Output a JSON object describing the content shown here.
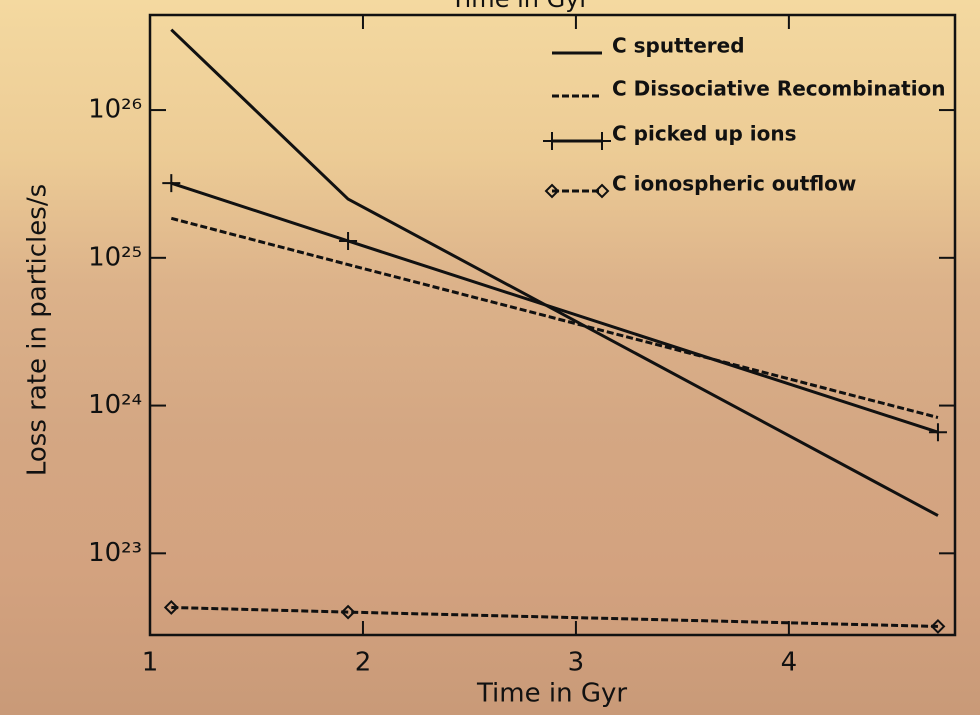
{
  "chart_data": {
    "type": "line",
    "title": "Time in Gyr",
    "xlabel": "Time in Gyr",
    "ylabel": "Loss rate in particles/s",
    "x": [
      1.1,
      1.93,
      4.7
    ],
    "series": [
      {
        "name": "C sputtered",
        "color": "#111111",
        "dash": "solid",
        "marker": "none",
        "values": [
          3.5e+26,
          2.5e+25,
          1.8e+23
        ]
      },
      {
        "name": "C Dissociative Recombination",
        "color": "#111111",
        "dash": "dashed",
        "marker": "none",
        "values": [
          1.85e+25,
          9e+24,
          8.3e+23
        ]
      },
      {
        "name": "C picked up ions",
        "color": "#111111",
        "dash": "solid",
        "marker": "plus",
        "values": [
          3.2e+25,
          1.3e+25,
          6.6e+23
        ]
      },
      {
        "name": "C ionospheric outflow",
        "color": "#111111",
        "dash": "dashed",
        "marker": "diamond",
        "values": [
          4.3e+22,
          4e+22,
          3.2e+22
        ]
      }
    ],
    "xlim": [
      1,
      4.78
    ],
    "xticks": [
      1,
      2,
      3,
      4
    ],
    "ylim": [
      2.8e+22,
      4.4e+26
    ],
    "yscale": "log",
    "yticks": [
      {
        "value": 1e+23,
        "label": "10²³"
      },
      {
        "value": 1e+24,
        "label": "10²⁴"
      },
      {
        "value": 1e+25,
        "label": "10²⁵"
      },
      {
        "value": 1e+26,
        "label": "10²⁶"
      }
    ],
    "legend": "upper right",
    "grid": false
  }
}
